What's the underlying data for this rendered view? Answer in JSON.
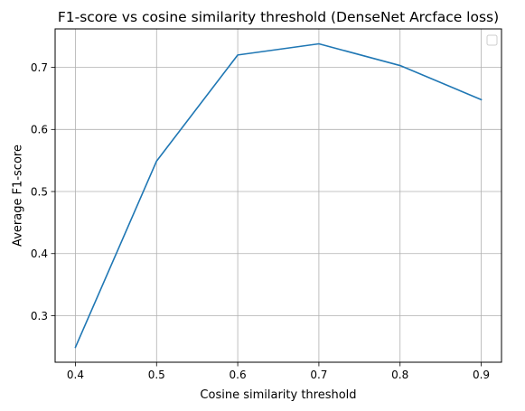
{
  "chart_data": {
    "type": "line",
    "title": "F1-score vs cosine similarity threshold (DenseNet Arcface loss)",
    "xlabel": "Cosine similarity threshold",
    "ylabel": "Average F1-score",
    "x": [
      0.4,
      0.5,
      0.6,
      0.7,
      0.8,
      0.9
    ],
    "series": [
      {
        "values": [
          0.249,
          0.549,
          0.72,
          0.738,
          0.703,
          0.648
        ],
        "color": "#1f77b4"
      }
    ],
    "xlim": [
      0.375,
      0.925
    ],
    "ylim": [
      0.225,
      0.762
    ],
    "xticks": [
      0.4,
      0.5,
      0.6,
      0.7,
      0.8,
      0.9
    ],
    "xtick_labels": [
      "0.4",
      "0.5",
      "0.6",
      "0.7",
      "0.8",
      "0.9"
    ],
    "yticks": [
      0.3,
      0.4,
      0.5,
      0.6,
      0.7
    ],
    "ytick_labels": [
      "0.3",
      "0.4",
      "0.5",
      "0.6",
      "0.7"
    ],
    "grid": true,
    "legend": {
      "placement": "top-right",
      "entries": []
    }
  }
}
